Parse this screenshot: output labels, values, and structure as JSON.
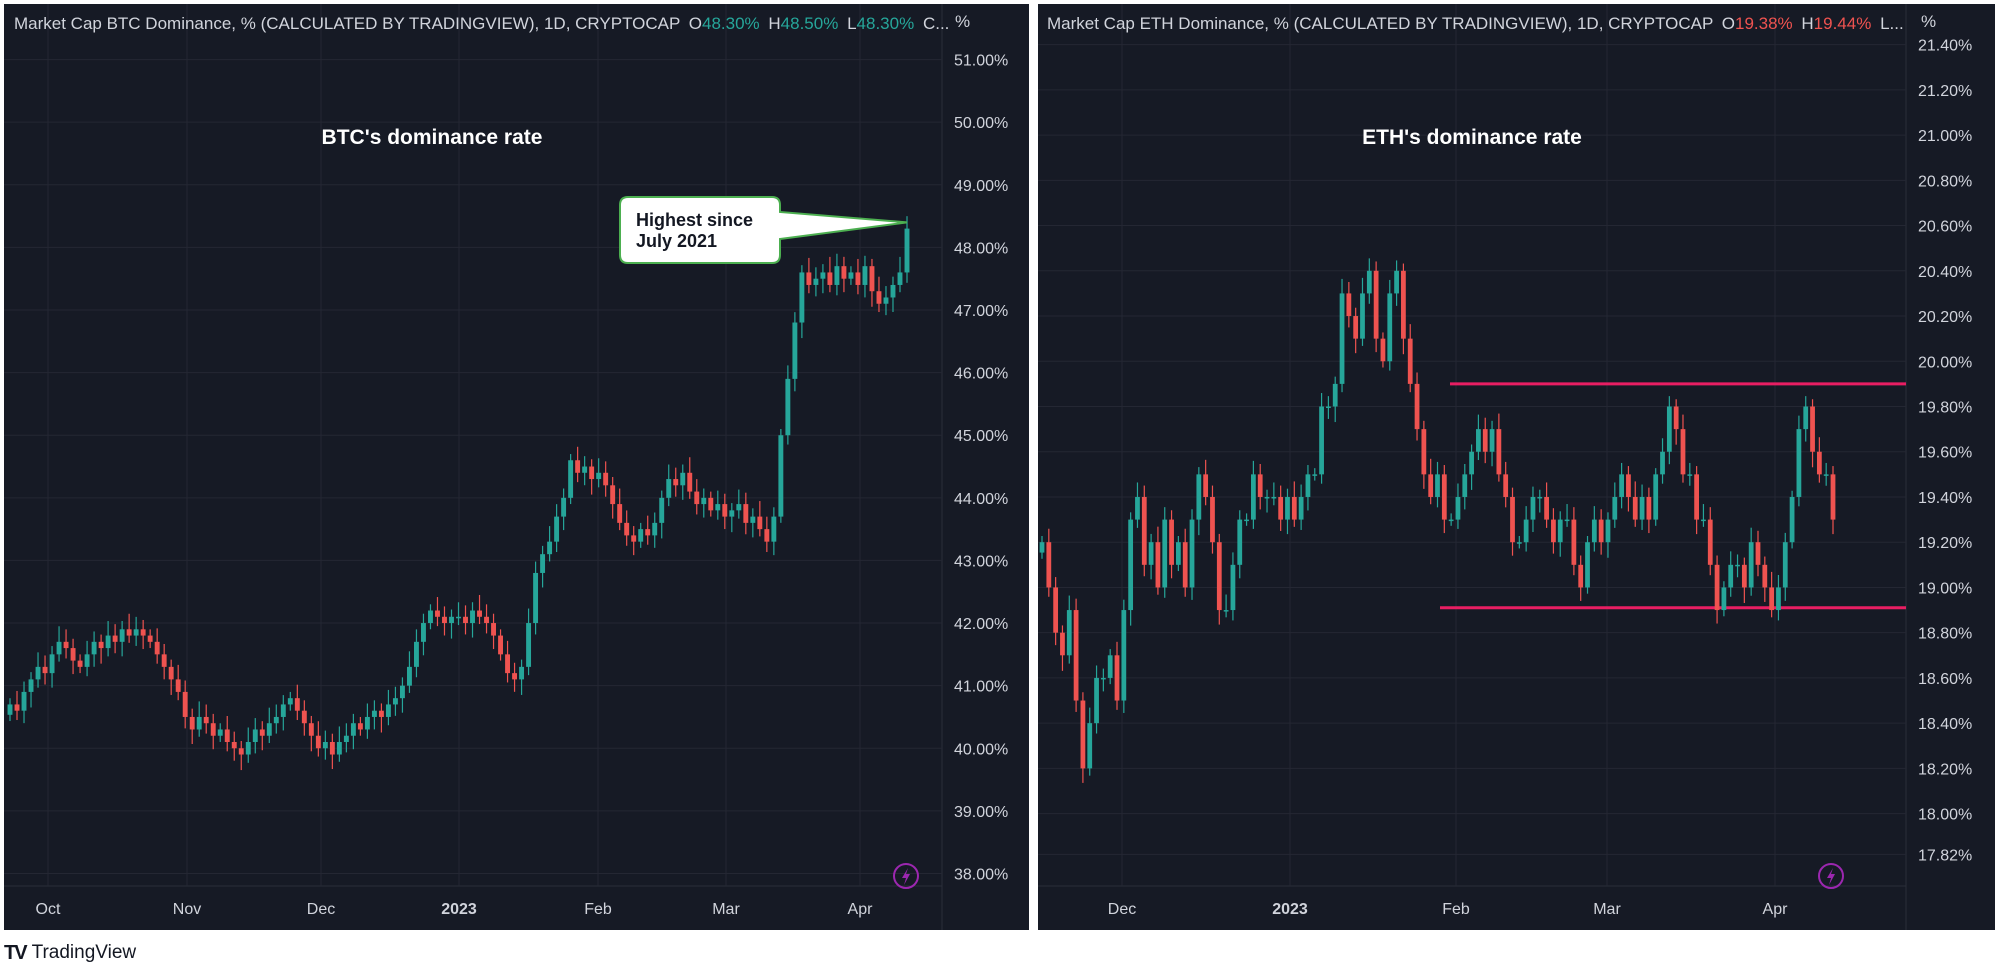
{
  "footer": {
    "brand": "TradingView",
    "logo_icon": "tradingview-logo-icon"
  },
  "colors": {
    "up": "#26a69a",
    "down": "#ef5350",
    "bg": "#161a25",
    "grid": "#242733",
    "axis_text": "#d1d4dc",
    "line": "#e91e63",
    "bolt": "#9c27b0"
  },
  "chart_data": [
    {
      "type": "candlestick",
      "legend": {
        "title": "Market Cap BTC Dominance, % (CALCULATED BY TRADINGVIEW), 1D, CRYPTOCAP",
        "o_label": "O",
        "o_value": "48.30%",
        "h_label": "H",
        "h_value": "48.50%",
        "l_label": "L",
        "l_value": "48.30%",
        "tail": "C..."
      },
      "unit_label": "%",
      "title": "BTC's dominance rate",
      "annotation": {
        "line1": "Highest since",
        "line2": "July 2021"
      },
      "y_ticks": [
        "51.00%",
        "50.00%",
        "49.00%",
        "48.00%",
        "47.00%",
        "46.00%",
        "45.00%",
        "44.00%",
        "43.00%",
        "42.00%",
        "41.00%",
        "40.00%",
        "39.00%",
        "38.00%"
      ],
      "ylim": [
        37.8,
        51.6
      ],
      "x_labels": [
        "Oct",
        "Nov",
        "Dec",
        "2023",
        "Feb",
        "Mar",
        "Apr"
      ],
      "closes": [
        40.7,
        40.6,
        40.9,
        41.1,
        41.3,
        41.2,
        41.5,
        41.7,
        41.6,
        41.4,
        41.3,
        41.5,
        41.7,
        41.6,
        41.8,
        41.7,
        41.9,
        41.8,
        41.9,
        41.8,
        41.7,
        41.5,
        41.3,
        41.1,
        40.9,
        40.5,
        40.3,
        40.5,
        40.4,
        40.2,
        40.3,
        40.1,
        40.0,
        39.9,
        40.1,
        40.3,
        40.2,
        40.4,
        40.5,
        40.7,
        40.8,
        40.6,
        40.4,
        40.2,
        40.0,
        40.1,
        39.9,
        40.1,
        40.2,
        40.4,
        40.3,
        40.5,
        40.6,
        40.5,
        40.7,
        40.8,
        41.0,
        41.3,
        41.7,
        42.0,
        42.2,
        42.1,
        42.0,
        42.1,
        42.1,
        42.0,
        42.2,
        42.1,
        42.0,
        41.8,
        41.5,
        41.2,
        41.1,
        41.3,
        42.0,
        42.8,
        43.1,
        43.3,
        43.7,
        44.0,
        44.6,
        44.4,
        44.5,
        44.3,
        44.4,
        44.2,
        43.9,
        43.6,
        43.4,
        43.3,
        43.5,
        43.4,
        43.6,
        44.0,
        44.3,
        44.2,
        44.4,
        44.1,
        43.9,
        44.0,
        43.8,
        43.9,
        43.7,
        43.8,
        43.9,
        43.6,
        43.7,
        43.5,
        43.3,
        43.7,
        45.0,
        45.9,
        46.8,
        47.6,
        47.4,
        47.5,
        47.6,
        47.4,
        47.7,
        47.5,
        47.6,
        47.4,
        47.7,
        47.3,
        47.1,
        47.2,
        47.4,
        47.6,
        48.3
      ]
    },
    {
      "type": "candlestick",
      "legend": {
        "title": "Market Cap ETH Dominance, % (CALCULATED BY TRADINGVIEW), 1D, CRYPTOCAP",
        "o_label": "O",
        "o_value": "19.38%",
        "h_label": "H",
        "h_value": "19.44%",
        "l_label": "L...",
        "l_value": "",
        "tail": ""
      },
      "unit_label": "%",
      "title": "ETH's dominance rate",
      "y_ticks": [
        "21.40%",
        "21.20%",
        "21.00%",
        "20.80%",
        "20.60%",
        "20.40%",
        "20.20%",
        "20.00%",
        "19.80%",
        "19.60%",
        "19.40%",
        "19.20%",
        "19.00%",
        "18.80%",
        "18.60%",
        "18.40%",
        "18.20%",
        "18.00%",
        "17.82%"
      ],
      "ylim": [
        17.68,
        21.5
      ],
      "x_labels": [
        "Dec",
        "2023",
        "Feb",
        "Mar",
        "Apr"
      ],
      "range_lines": [
        19.9,
        18.91
      ],
      "closes": [
        19.2,
        19.0,
        18.8,
        18.7,
        18.9,
        18.5,
        18.2,
        18.4,
        18.6,
        18.6,
        18.7,
        18.5,
        18.9,
        19.3,
        19.4,
        19.1,
        19.2,
        19.0,
        19.3,
        19.1,
        19.2,
        19.0,
        19.3,
        19.5,
        19.4,
        19.2,
        18.9,
        18.9,
        19.1,
        19.3,
        19.3,
        19.5,
        19.4,
        19.4,
        19.4,
        19.3,
        19.4,
        19.3,
        19.4,
        19.5,
        19.5,
        19.8,
        19.8,
        19.9,
        20.3,
        20.2,
        20.1,
        20.3,
        20.4,
        20.1,
        20.0,
        20.3,
        20.4,
        20.1,
        19.9,
        19.7,
        19.5,
        19.4,
        19.5,
        19.3,
        19.3,
        19.4,
        19.5,
        19.6,
        19.7,
        19.6,
        19.7,
        19.5,
        19.4,
        19.2,
        19.2,
        19.3,
        19.4,
        19.4,
        19.3,
        19.2,
        19.3,
        19.3,
        19.1,
        19.0,
        19.2,
        19.3,
        19.2,
        19.3,
        19.4,
        19.5,
        19.4,
        19.3,
        19.4,
        19.3,
        19.5,
        19.6,
        19.8,
        19.7,
        19.5,
        19.5,
        19.3,
        19.3,
        19.1,
        18.9,
        19.0,
        19.1,
        19.1,
        19.0,
        19.2,
        19.1,
        19.0,
        18.9,
        19.0,
        19.2,
        19.4,
        19.7,
        19.8,
        19.6,
        19.5,
        19.5,
        19.3
      ]
    }
  ]
}
